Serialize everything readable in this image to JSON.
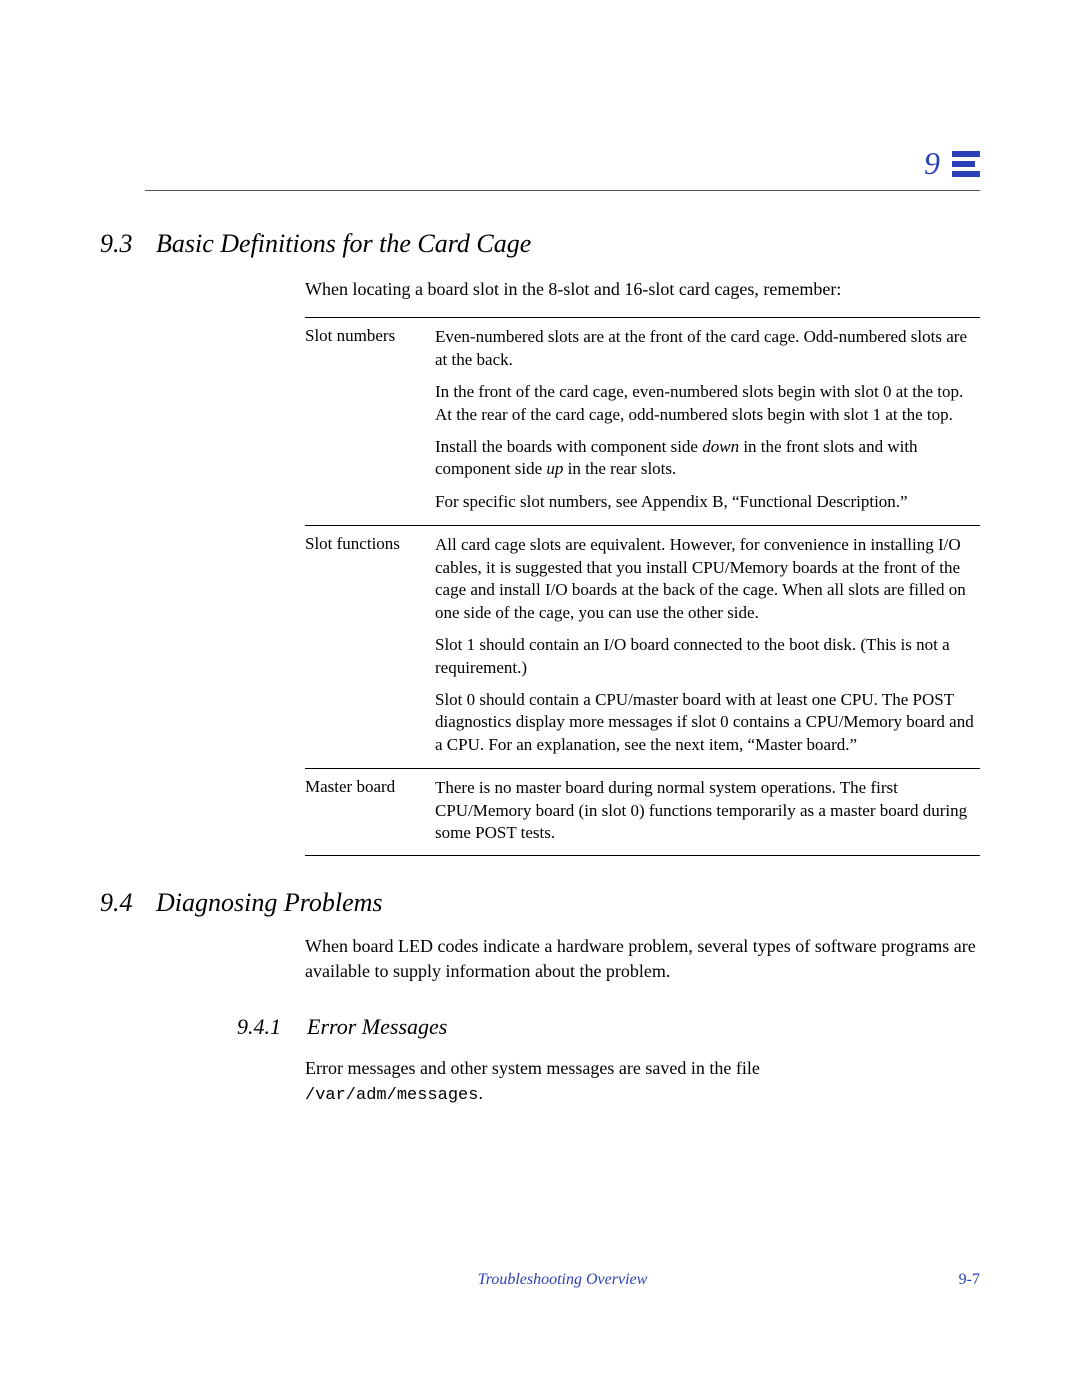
{
  "chapter": {
    "number": "9",
    "accent_color": "#2a3fb8"
  },
  "section_93": {
    "num": "9.3",
    "title": "Basic Definitions for the Card Cage",
    "intro": "When locating a board slot in the 8-slot and 16-slot card cages, remember:",
    "rows": [
      {
        "label": "Slot numbers",
        "cells": [
          "Even-numbered slots are at the front of the card cage. Odd-numbered slots are at the back.",
          "In the front of the card cage, even-numbered slots begin with slot 0 at the top. At the rear of the card cage, odd-numbered slots begin with slot 1 at the top.",
          "Install the boards with component side <em>down</em> in the front slots and with component side <em>up</em> in the rear slots.",
          "For specific slot numbers, see Appendix B, “Functional Description.”"
        ]
      },
      {
        "label": "Slot functions",
        "cells": [
          "All card cage slots are equivalent. However, for convenience in installing I/O cables, it is suggested that you install CPU/Memory boards at the front of the cage and install I/O boards at the back of the cage. When all slots are filled on one side of the cage, you can use the other side.",
          "Slot 1 should contain an I/O board connected to the boot disk. (This is not a requirement.)",
          "Slot 0 should contain a CPU/master board with at least one CPU. The POST diagnostics display more messages if slot 0 contains a CPU/Memory board and a CPU. For an explanation, see the next item, “Master board.”"
        ]
      },
      {
        "label": "Master board",
        "cells": [
          "There is no master board during normal system operations. The first CPU/Memory board (in slot 0) functions temporarily as a master board during some POST tests."
        ]
      }
    ]
  },
  "section_94": {
    "num": "9.4",
    "title": "Diagnosing Problems",
    "intro": "When board LED codes indicate a hardware problem, several types of software programs are available to supply information about the problem."
  },
  "section_941": {
    "num": "9.4.1",
    "title": "Error Messages",
    "text": "Error messages and other system messages are saved in the file ",
    "path": "/var/adm/messages",
    "suffix": "."
  },
  "footer": {
    "center": "Troubleshooting Overview",
    "right": "9-7"
  }
}
